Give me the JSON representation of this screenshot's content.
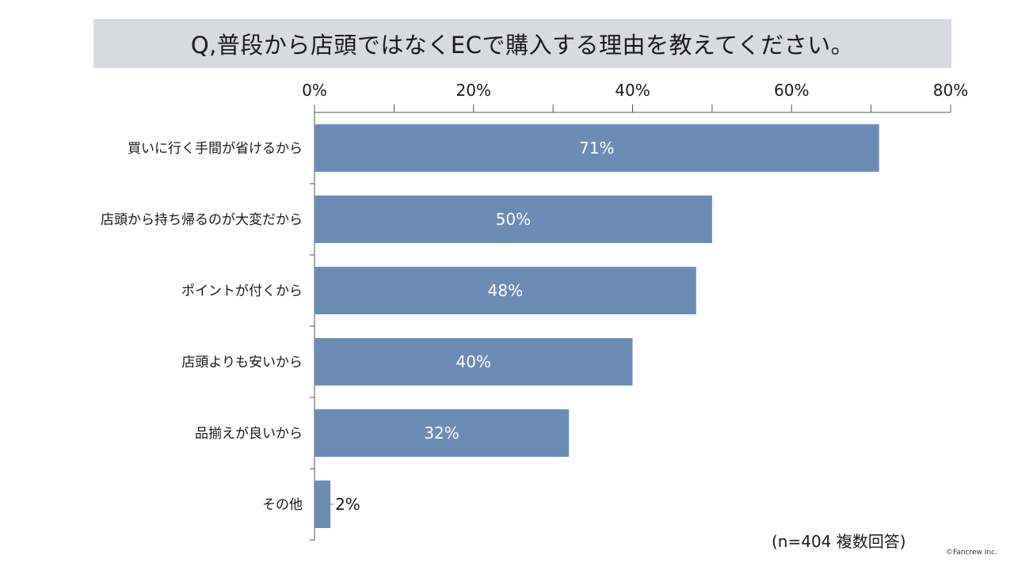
{
  "title": "Q,普段から店頭ではなくECで購入する理由を教えてください。",
  "note": "(n=404 複数回答)",
  "copyright": "©Fancrew Inc.",
  "colors": {
    "bar": "#6d8cb5",
    "title_bg": "#d9dadf",
    "axis": "#555555",
    "inside_label": "#ffffff",
    "text": "#1a1a1a"
  },
  "chart_data": {
    "type": "bar",
    "orientation": "horizontal",
    "title": "Q,普段から店頭ではなくECで購入する理由を教えてください。",
    "categories": [
      "買いに行く手間が省けるから",
      "店頭から持ち帰るのが大変だから",
      "ポイントが付くから",
      "店頭よりも安いから",
      "品揃えが良いから",
      "その他"
    ],
    "values": [
      71,
      50,
      48,
      40,
      32,
      2
    ],
    "data_labels": [
      "71%",
      "50%",
      "48%",
      "40%",
      "32%",
      "2%"
    ],
    "xlim": [
      0,
      80
    ],
    "xticks": [
      0,
      20,
      40,
      60,
      80
    ],
    "xtick_labels": [
      "0%",
      "20%",
      "40%",
      "60%",
      "80%"
    ],
    "x_axis_position": "top",
    "xlabel": "",
    "ylabel": "",
    "grid": false,
    "legend": "none"
  }
}
